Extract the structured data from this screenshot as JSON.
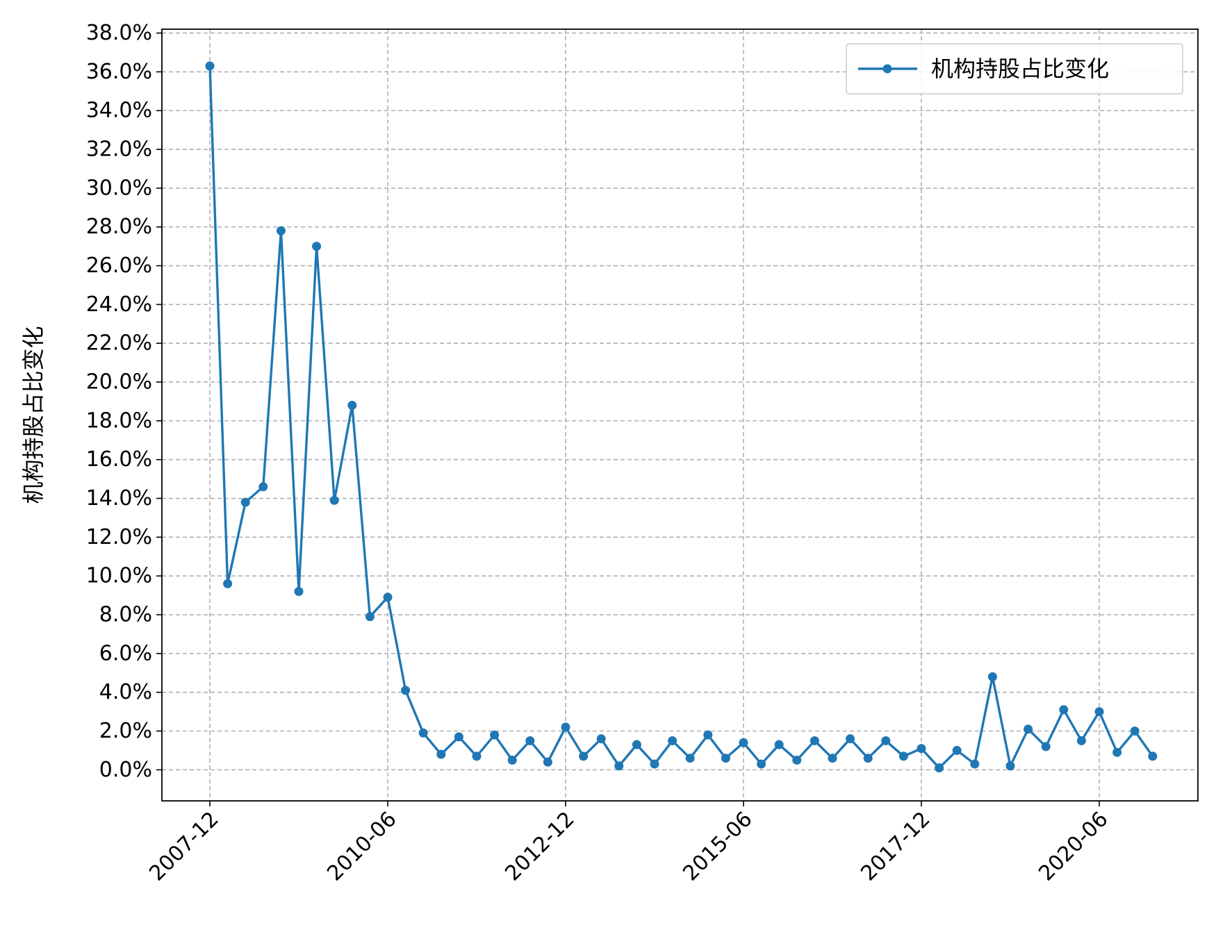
{
  "chart_data": {
    "type": "line",
    "ylabel": "机构持股占比变化",
    "xlabel": "",
    "title": "",
    "y_tick_labels": [
      "0.0%",
      "2.0%",
      "4.0%",
      "6.0%",
      "8.0%",
      "10.0%",
      "12.0%",
      "14.0%",
      "16.0%",
      "18.0%",
      "20.0%",
      "22.0%",
      "24.0%",
      "26.0%",
      "28.0%",
      "30.0%",
      "32.0%",
      "34.0%",
      "36.0%",
      "38.0%"
    ],
    "x_tick_labels": [
      "2007-12",
      "2010-06",
      "2012-12",
      "2015-06",
      "2017-12",
      "2020-06"
    ],
    "ylim": [
      -1.6,
      38.2
    ],
    "grid": true,
    "legend_position": "upper right",
    "series": [
      {
        "name": "机构持股占比变化",
        "color": "#1f77b4",
        "marker": "circle",
        "x": [
          "2007-12",
          "2008-03",
          "2008-06",
          "2008-09",
          "2008-12",
          "2009-03",
          "2009-06",
          "2009-09",
          "2009-12",
          "2010-03",
          "2010-06",
          "2010-09",
          "2010-12",
          "2011-03",
          "2011-06",
          "2011-09",
          "2011-12",
          "2012-03",
          "2012-06",
          "2012-09",
          "2012-12",
          "2013-03",
          "2013-06",
          "2013-09",
          "2013-12",
          "2014-03",
          "2014-06",
          "2014-09",
          "2014-12",
          "2015-03",
          "2015-06",
          "2015-09",
          "2015-12",
          "2016-03",
          "2016-06",
          "2016-09",
          "2016-12",
          "2017-03",
          "2017-06",
          "2017-09",
          "2017-12",
          "2018-03",
          "2018-06",
          "2018-09",
          "2018-12",
          "2019-03",
          "2019-06",
          "2019-09",
          "2019-12",
          "2020-03",
          "2020-06",
          "2020-09",
          "2020-12",
          "2021-03"
        ],
        "values": [
          36.3,
          9.6,
          13.8,
          14.6,
          27.8,
          9.2,
          27.0,
          13.9,
          18.8,
          7.9,
          8.9,
          4.1,
          1.9,
          0.8,
          1.7,
          0.7,
          1.8,
          0.5,
          1.5,
          0.4,
          2.2,
          0.7,
          1.6,
          0.2,
          1.3,
          0.3,
          1.5,
          0.6,
          1.8,
          0.6,
          1.4,
          0.3,
          1.3,
          0.5,
          1.5,
          0.6,
          1.6,
          0.6,
          1.5,
          0.7,
          1.1,
          0.1,
          1.0,
          0.3,
          4.8,
          0.2,
          2.1,
          1.2,
          3.1,
          1.5,
          3.0,
          0.9,
          2.0,
          0.7
        ]
      }
    ]
  }
}
